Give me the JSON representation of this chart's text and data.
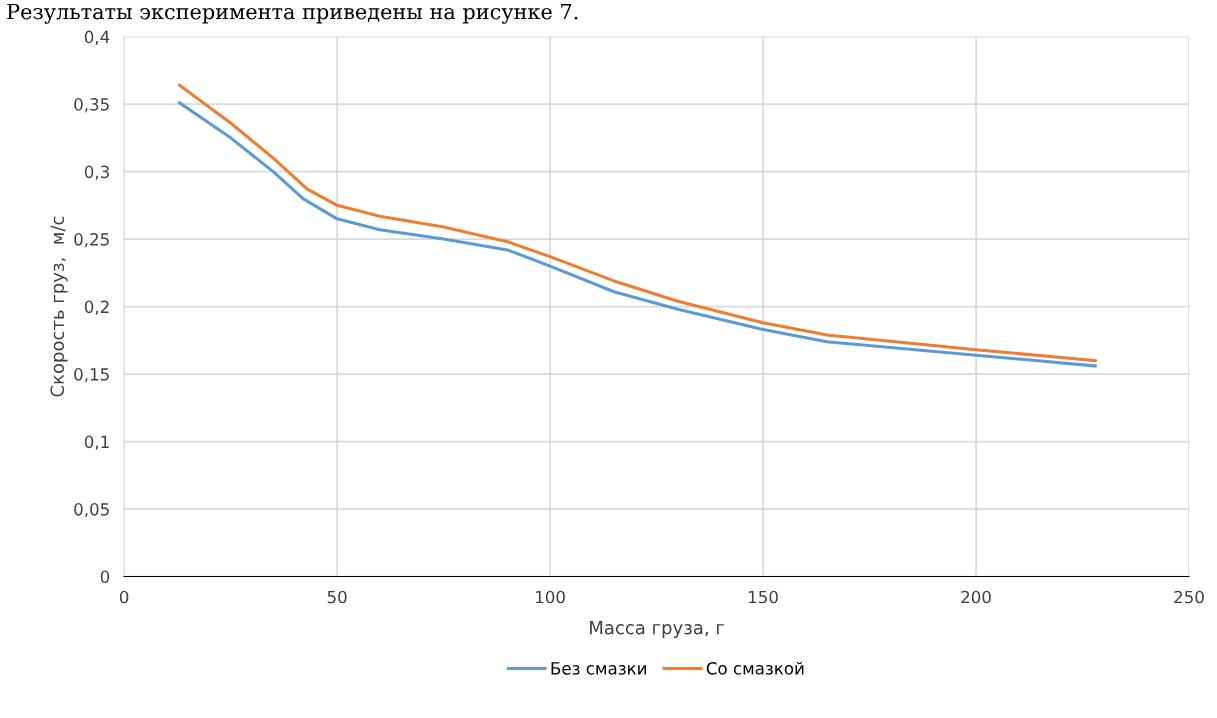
{
  "chart_data": {
    "type": "line",
    "annotations": [
      "Результаты эксперимента приведены на рисунке 7."
    ],
    "xlabel": "Масса груза, г",
    "ylabel": "Скорость груз,  м/с",
    "xlim": [
      0,
      250
    ],
    "xticks": [
      0,
      50,
      100,
      150,
      200,
      250
    ],
    "ylim": [
      0,
      0.4
    ],
    "yticks": [
      {
        "value": 0,
        "label": "0"
      },
      {
        "value": 0.05,
        "label": "0,05"
      },
      {
        "value": 0.1,
        "label": "0,1"
      },
      {
        "value": 0.15,
        "label": "0,15"
      },
      {
        "value": 0.2,
        "label": "0,2"
      },
      {
        "value": 0.25,
        "label": "0,25"
      },
      {
        "value": 0.3,
        "label": "0,3"
      },
      {
        "value": 0.35,
        "label": "0,35"
      },
      {
        "value": 0.4,
        "label": "0,4"
      }
    ],
    "grid": true,
    "legend": "bottom",
    "marker": "none",
    "line_style": "solid",
    "series": [
      {
        "name": "Без смазки",
        "color": "#5b9bd5",
        "x": [
          13,
          25,
          35,
          42,
          50,
          60,
          75,
          90,
          100,
          115,
          130,
          150,
          165,
          200,
          228
        ],
        "values": [
          0.351,
          0.325,
          0.3,
          0.28,
          0.265,
          0.257,
          0.25,
          0.242,
          0.23,
          0.211,
          0.198,
          0.183,
          0.174,
          0.164,
          0.156
        ]
      },
      {
        "name": "Со смазкой",
        "color": "#ed7d31",
        "x": [
          13,
          25,
          35,
          43,
          50,
          60,
          75,
          90,
          100,
          115,
          130,
          150,
          165,
          200,
          228
        ],
        "values": [
          0.364,
          0.336,
          0.31,
          0.287,
          0.275,
          0.267,
          0.259,
          0.248,
          0.237,
          0.219,
          0.204,
          0.188,
          0.179,
          0.168,
          0.16
        ]
      }
    ]
  }
}
